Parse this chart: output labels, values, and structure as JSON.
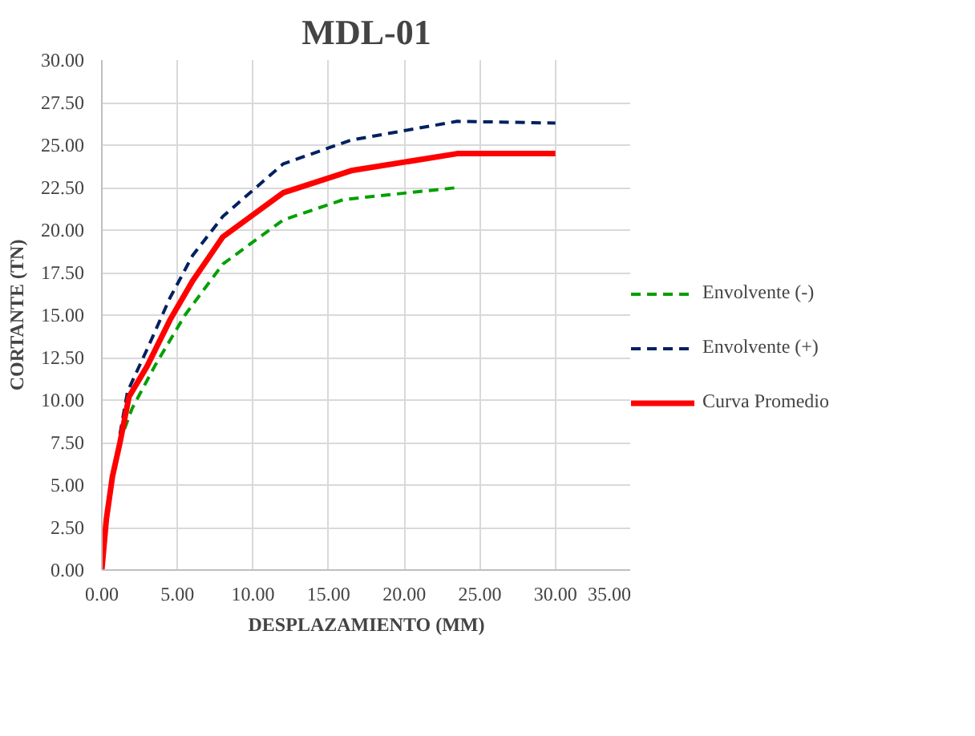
{
  "chart_data": {
    "type": "line",
    "title": "MDL-01",
    "xlabel": "DESPLAZAMIENTO (MM)",
    "ylabel": "CORTANTE (TN)",
    "xlim": [
      0,
      35
    ],
    "xticks": [
      {
        "value": 0,
        "label": "0.00"
      },
      {
        "value": 5,
        "label": "5.00"
      },
      {
        "value": 10,
        "label": "10.00"
      },
      {
        "value": 15,
        "label": "15.00"
      },
      {
        "value": 20,
        "label": "20.00"
      },
      {
        "value": 25,
        "label": "25.00"
      },
      {
        "value": 30,
        "label": "30.00"
      },
      {
        "value": 35,
        "label": "35.00"
      }
    ],
    "ylim": [
      0,
      30
    ],
    "yticks": [
      {
        "value": 0,
        "label": "0.00"
      },
      {
        "value": 2.5,
        "label": "2.50"
      },
      {
        "value": 5,
        "label": "5.00"
      },
      {
        "value": 7.5,
        "label": "7.50"
      },
      {
        "value": 10,
        "label": "10.00"
      },
      {
        "value": 12.5,
        "label": "12.50"
      },
      {
        "value": 15,
        "label": "15.00"
      },
      {
        "value": 17.5,
        "label": "17.50"
      },
      {
        "value": 20,
        "label": "20.00"
      },
      {
        "value": 22.5,
        "label": "22.50"
      },
      {
        "value": 25,
        "label": "25.00"
      },
      {
        "value": 27.5,
        "label": "27.50"
      },
      {
        "value": 30,
        "label": "30.00"
      }
    ],
    "grid": true,
    "legend": "right",
    "marker": "none",
    "series": [
      {
        "name": "Envolvente (-)",
        "color": "#00a000",
        "line_style": "dashed",
        "x": [
          1.5,
          2,
          3.5,
          5.5,
          8,
          12,
          16,
          23.5
        ],
        "values": [
          8.3,
          9.5,
          12,
          15,
          18,
          20.6,
          21.8,
          22.5
        ]
      },
      {
        "name": "Envolvente (+)",
        "color": "#002060",
        "line_style": "dashed",
        "x": [
          1.2,
          1.7,
          3,
          4.5,
          6,
          8,
          12,
          16.5,
          23.5,
          30
        ],
        "values": [
          8,
          10.5,
          13,
          16,
          18.5,
          20.8,
          23.9,
          25.3,
          26.4,
          26.3
        ]
      },
      {
        "name": "Curva Promedio",
        "color": "#ff0000",
        "line_style": "solid",
        "x": [
          0,
          0.3,
          0.7,
          1.2,
          1.8,
          3,
          4.5,
          6,
          8,
          12,
          16.5,
          23.5,
          30
        ],
        "values": [
          0,
          3,
          5.5,
          7.5,
          10.2,
          12,
          14.7,
          17,
          19.6,
          22.2,
          23.5,
          24.5,
          24.5
        ]
      }
    ]
  }
}
